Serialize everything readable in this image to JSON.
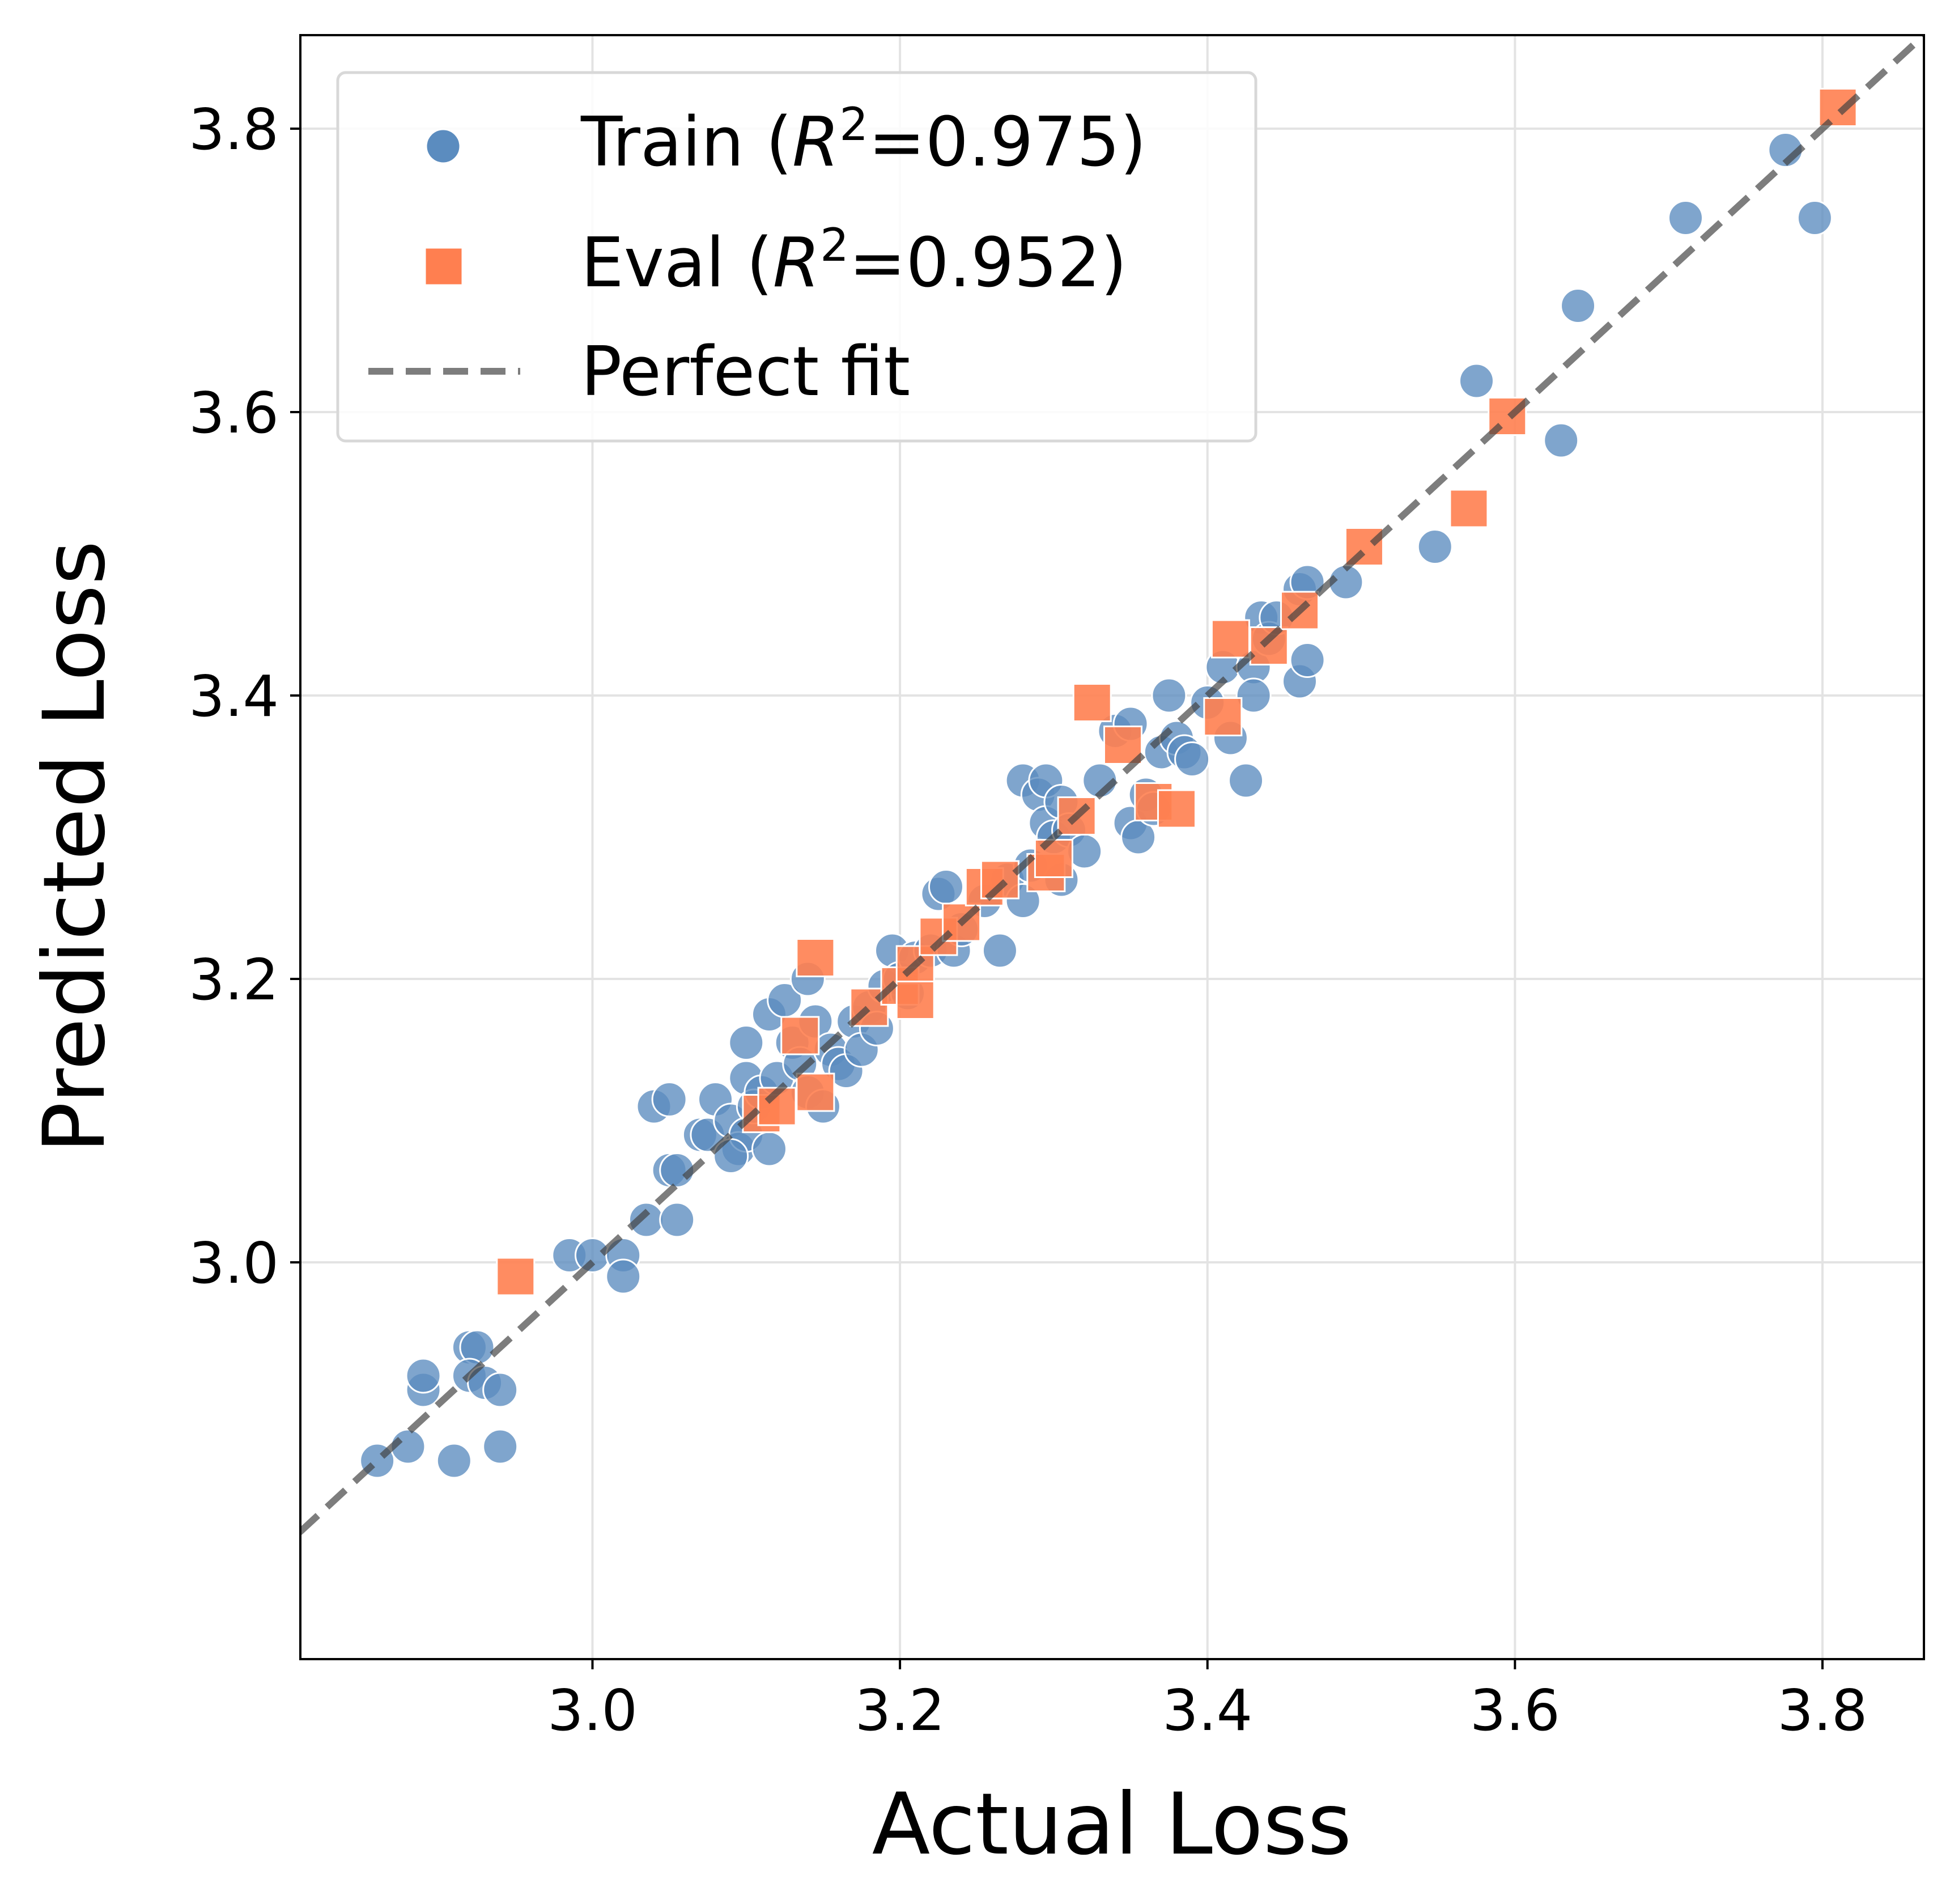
{
  "chart_data": {
    "type": "scatter",
    "title": "",
    "xlabel": "Actual Loss",
    "ylabel": "Predicted Loss",
    "xlim": [
      2.81,
      3.866
    ],
    "ylim": [
      2.72,
      3.866
    ],
    "xticks": [
      "3.0",
      "3.2",
      "3.4",
      "3.6",
      "3.8"
    ],
    "yticks": [
      "3.0",
      "3.2",
      "3.4",
      "3.6",
      "3.8"
    ],
    "grid": true,
    "legend_position": "top-left",
    "colors": {
      "train": "#5b8cbf",
      "eval": "#ff7f50",
      "perfect": "#404040"
    },
    "legend": {
      "train": {
        "prefix": "Train (",
        "r": "R",
        "exp": "2",
        "suffix": "=0.975)"
      },
      "eval": {
        "prefix": "Eval (",
        "r": "R",
        "exp": "2",
        "suffix": "=0.952)"
      },
      "perfect": {
        "label": "Perfect fit"
      }
    },
    "series": [
      {
        "name": "Train",
        "marker": "circle",
        "points": [
          [
            2.86,
            2.86
          ],
          [
            2.88,
            2.87
          ],
          [
            2.91,
            2.86
          ],
          [
            2.94,
            2.87
          ],
          [
            2.89,
            2.91
          ],
          [
            2.89,
            2.92
          ],
          [
            2.92,
            2.94
          ],
          [
            2.925,
            2.94
          ],
          [
            2.92,
            2.92
          ],
          [
            2.93,
            2.915
          ],
          [
            2.94,
            2.91
          ],
          [
            2.985,
            3.005
          ],
          [
            3.0,
            3.005
          ],
          [
            3.02,
            3.005
          ],
          [
            3.02,
            2.99
          ],
          [
            3.035,
            3.03
          ],
          [
            3.055,
            3.03
          ],
          [
            3.04,
            3.11
          ],
          [
            3.05,
            3.115
          ],
          [
            3.05,
            3.065
          ],
          [
            3.055,
            3.065
          ],
          [
            3.07,
            3.09
          ],
          [
            3.075,
            3.09
          ],
          [
            3.08,
            3.115
          ],
          [
            3.09,
            3.1
          ],
          [
            3.095,
            3.08
          ],
          [
            3.1,
            3.09
          ],
          [
            3.09,
            3.075
          ],
          [
            3.1,
            3.13
          ],
          [
            3.1,
            3.155
          ],
          [
            3.105,
            3.11
          ],
          [
            3.11,
            3.12
          ],
          [
            3.115,
            3.08
          ],
          [
            3.115,
            3.175
          ],
          [
            3.12,
            3.13
          ],
          [
            3.125,
            3.185
          ],
          [
            3.13,
            3.155
          ],
          [
            3.135,
            3.14
          ],
          [
            3.14,
            3.12
          ],
          [
            3.14,
            3.2
          ],
          [
            3.145,
            3.17
          ],
          [
            3.15,
            3.11
          ],
          [
            3.155,
            3.15
          ],
          [
            3.16,
            3.14
          ],
          [
            3.165,
            3.135
          ],
          [
            3.17,
            3.17
          ],
          [
            3.175,
            3.15
          ],
          [
            3.18,
            3.18
          ],
          [
            3.185,
            3.165
          ],
          [
            3.19,
            3.195
          ],
          [
            3.195,
            3.22
          ],
          [
            3.2,
            3.2
          ],
          [
            3.205,
            3.19
          ],
          [
            3.21,
            3.215
          ],
          [
            3.22,
            3.22
          ],
          [
            3.225,
            3.26
          ],
          [
            3.23,
            3.265
          ],
          [
            3.235,
            3.22
          ],
          [
            3.24,
            3.235
          ],
          [
            3.255,
            3.255
          ],
          [
            3.265,
            3.22
          ],
          [
            3.27,
            3.27
          ],
          [
            3.28,
            3.255
          ],
          [
            3.285,
            3.28
          ],
          [
            3.28,
            3.34
          ],
          [
            3.29,
            3.33
          ],
          [
            3.295,
            3.34
          ],
          [
            3.295,
            3.31
          ],
          [
            3.3,
            3.3
          ],
          [
            3.305,
            3.27
          ],
          [
            3.305,
            3.325
          ],
          [
            3.31,
            3.305
          ],
          [
            3.32,
            3.29
          ],
          [
            3.33,
            3.34
          ],
          [
            3.34,
            3.375
          ],
          [
            3.35,
            3.38
          ],
          [
            3.35,
            3.31
          ],
          [
            3.355,
            3.3
          ],
          [
            3.36,
            3.33
          ],
          [
            3.365,
            3.32
          ],
          [
            3.37,
            3.36
          ],
          [
            3.375,
            3.4
          ],
          [
            3.38,
            3.37
          ],
          [
            3.385,
            3.36
          ],
          [
            3.39,
            3.355
          ],
          [
            3.4,
            3.395
          ],
          [
            3.41,
            3.42
          ],
          [
            3.415,
            3.37
          ],
          [
            3.425,
            3.34
          ],
          [
            3.43,
            3.42
          ],
          [
            3.43,
            3.4
          ],
          [
            3.435,
            3.455
          ],
          [
            3.44,
            3.44
          ],
          [
            3.445,
            3.455
          ],
          [
            3.46,
            3.475
          ],
          [
            3.46,
            3.41
          ],
          [
            3.465,
            3.425
          ],
          [
            3.465,
            3.48
          ],
          [
            3.49,
            3.48
          ],
          [
            3.548,
            3.505
          ],
          [
            3.575,
            3.622
          ],
          [
            3.63,
            3.58
          ],
          [
            3.641,
            3.675
          ],
          [
            3.711,
            3.737
          ],
          [
            3.776,
            3.785
          ],
          [
            3.795,
            3.737
          ]
        ]
      },
      {
        "name": "Eval",
        "marker": "square",
        "points": [
          [
            2.95,
            2.99
          ],
          [
            3.11,
            3.105
          ],
          [
            3.12,
            3.11
          ],
          [
            3.145,
            3.12
          ],
          [
            3.135,
            3.16
          ],
          [
            3.145,
            3.215
          ],
          [
            3.18,
            3.18
          ],
          [
            3.2,
            3.195
          ],
          [
            3.21,
            3.21
          ],
          [
            3.21,
            3.185
          ],
          [
            3.225,
            3.23
          ],
          [
            3.24,
            3.24
          ],
          [
            3.255,
            3.265
          ],
          [
            3.265,
            3.27
          ],
          [
            3.295,
            3.275
          ],
          [
            3.3,
            3.285
          ],
          [
            3.315,
            3.315
          ],
          [
            3.325,
            3.395
          ],
          [
            3.345,
            3.365
          ],
          [
            3.365,
            3.325
          ],
          [
            3.38,
            3.32
          ],
          [
            3.41,
            3.385
          ],
          [
            3.415,
            3.44
          ],
          [
            3.44,
            3.435
          ],
          [
            3.46,
            3.46
          ],
          [
            3.502,
            3.505
          ],
          [
            3.57,
            3.532
          ],
          [
            3.595,
            3.597
          ],
          [
            3.81,
            3.815
          ]
        ]
      }
    ]
  }
}
